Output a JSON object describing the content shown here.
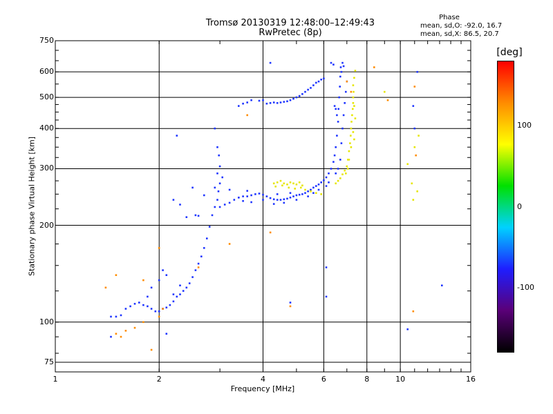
{
  "title_line1": "Tromsø 20130319 12:48:00–12:49:43",
  "title_line2": "RwPretec (8p)",
  "phase_box": {
    "title": "Phase",
    "o_line": "mean, sd,O: -92.0, 16.7",
    "x_line": "mean, sd,X:  86.5, 20.7"
  },
  "colorbar": {
    "unit": "[deg]",
    "ticks": [
      {
        "label": "100",
        "value": 100
      },
      {
        "label": "0",
        "value": 0
      },
      {
        "label": "-100",
        "value": -100
      }
    ],
    "range": [
      -180,
      180
    ],
    "colors": [
      "#000000",
      "#5a0078",
      "#1e1eff",
      "#00d2ff",
      "#00e000",
      "#ffff00",
      "#ff8c00",
      "#ff0000"
    ]
  },
  "chart_data": {
    "type": "scatter",
    "xlabel": "Frequency [MHz]",
    "ylabel": "Stationary phase Virtual Height [km]",
    "xscale": "log",
    "yscale": "log",
    "xlim": [
      1,
      16
    ],
    "ylim": [
      70,
      750
    ],
    "x_ticks": [
      {
        "label": "1",
        "value": 1
      },
      {
        "label": "2",
        "value": 2
      },
      {
        "label": "4",
        "value": 4
      },
      {
        "label": "6",
        "value": 6
      },
      {
        "label": "8",
        "value": 8
      },
      {
        "label": "10",
        "value": 10
      },
      {
        "label": "16",
        "value": 16
      }
    ],
    "y_ticks": [
      {
        "label": "750",
        "value": 750
      },
      {
        "label": "600",
        "value": 600
      },
      {
        "label": "500",
        "value": 500
      },
      {
        "label": "400",
        "value": 400
      },
      {
        "label": "300",
        "value": 300
      },
      {
        "label": "200",
        "value": 200
      },
      {
        "label": "100",
        "value": 100
      },
      {
        "label": "75",
        "value": 75
      }
    ],
    "grid": true,
    "series": [
      {
        "points": [
          [
            1.45,
            104
          ],
          [
            1.5,
            104
          ],
          [
            1.55,
            105
          ],
          [
            1.6,
            110
          ],
          [
            1.65,
            112
          ],
          [
            1.7,
            114
          ],
          [
            1.75,
            115
          ],
          [
            1.8,
            113
          ],
          [
            1.85,
            112
          ],
          [
            1.9,
            110
          ],
          [
            1.95,
            108
          ],
          [
            2.0,
            108
          ],
          [
            2.05,
            110
          ],
          [
            2.1,
            111
          ],
          [
            2.15,
            113
          ],
          [
            2.2,
            116
          ],
          [
            2.25,
            120
          ],
          [
            2.3,
            122
          ],
          [
            2.35,
            125
          ],
          [
            2.4,
            128
          ],
          [
            2.45,
            132
          ],
          [
            2.5,
            138
          ],
          [
            2.55,
            145
          ],
          [
            2.6,
            152
          ],
          [
            2.65,
            160
          ],
          [
            2.7,
            170
          ],
          [
            2.75,
            182
          ],
          [
            2.8,
            198
          ],
          [
            2.85,
            215
          ],
          [
            2.9,
            228
          ],
          [
            1.9,
            128
          ],
          [
            2.0,
            135
          ],
          [
            2.1,
            140
          ],
          [
            2.2,
            122
          ],
          [
            2.3,
            130
          ],
          [
            1.85,
            120
          ],
          [
            2.05,
            145
          ],
          [
            2.95,
            240
          ],
          [
            2.97,
            255
          ],
          [
            3.0,
            270
          ],
          [
            2.95,
            290
          ],
          [
            3.0,
            305
          ],
          [
            2.98,
            330
          ],
          [
            2.95,
            350
          ],
          [
            2.9,
            262
          ],
          [
            3.05,
            282
          ],
          [
            2.4,
            212
          ],
          [
            2.55,
            215
          ],
          [
            2.6,
            214
          ],
          [
            2.3,
            232
          ],
          [
            2.2,
            240
          ],
          [
            2.5,
            262
          ],
          [
            2.7,
            248
          ],
          [
            2.25,
            380
          ],
          [
            2.9,
            400
          ],
          [
            3.0,
            228
          ],
          [
            3.1,
            232
          ],
          [
            3.2,
            235
          ],
          [
            3.3,
            240
          ],
          [
            3.4,
            244
          ],
          [
            3.5,
            246
          ],
          [
            3.6,
            246
          ],
          [
            3.7,
            248
          ],
          [
            3.8,
            250
          ],
          [
            3.9,
            251
          ],
          [
            4.0,
            249
          ],
          [
            4.1,
            246
          ],
          [
            4.2,
            243
          ],
          [
            4.3,
            241
          ],
          [
            4.4,
            240
          ],
          [
            4.5,
            240
          ],
          [
            4.6,
            241
          ],
          [
            4.7,
            242
          ],
          [
            4.8,
            244
          ],
          [
            4.9,
            246
          ],
          [
            5.0,
            248
          ],
          [
            5.1,
            249
          ],
          [
            5.2,
            250
          ],
          [
            5.3,
            252
          ],
          [
            5.4,
            255
          ],
          [
            5.5,
            258
          ],
          [
            5.6,
            262
          ],
          [
            5.7,
            265
          ],
          [
            5.8,
            268
          ],
          [
            5.9,
            272
          ],
          [
            6.0,
            276
          ],
          [
            6.1,
            282
          ],
          [
            6.2,
            290
          ],
          [
            6.3,
            300
          ],
          [
            6.4,
            315
          ],
          [
            6.45,
            330
          ],
          [
            6.5,
            350
          ],
          [
            6.55,
            380
          ],
          [
            6.6,
            420
          ],
          [
            6.62,
            460
          ],
          [
            6.65,
            500
          ],
          [
            6.68,
            540
          ],
          [
            6.7,
            580
          ],
          [
            6.72,
            620
          ],
          [
            6.3,
            640
          ],
          [
            6.4,
            632
          ],
          [
            6.8,
            640
          ],
          [
            6.85,
            625
          ],
          [
            6.75,
            600
          ],
          [
            3.5,
            238
          ],
          [
            3.7,
            236
          ],
          [
            4.0,
            240
          ],
          [
            4.3,
            233
          ],
          [
            4.6,
            235
          ],
          [
            5.0,
            240
          ],
          [
            5.4,
            246
          ],
          [
            5.8,
            258
          ],
          [
            6.2,
            272
          ],
          [
            6.5,
            290
          ],
          [
            3.2,
            258
          ],
          [
            3.4,
            244
          ],
          [
            3.6,
            256
          ],
          [
            4.4,
            250
          ],
          [
            4.8,
            252
          ],
          [
            5.6,
            252
          ],
          [
            6.1,
            265
          ],
          [
            6.6,
            300
          ],
          [
            6.7,
            320
          ],
          [
            6.75,
            360
          ],
          [
            6.8,
            400
          ],
          [
            6.85,
            440
          ],
          [
            6.9,
            480
          ],
          [
            6.95,
            520
          ],
          [
            7.0,
            560
          ],
          [
            6.55,
            440
          ],
          [
            6.5,
            460
          ],
          [
            6.45,
            470
          ],
          [
            3.4,
            470
          ],
          [
            3.5,
            478
          ],
          [
            3.6,
            482
          ],
          [
            3.7,
            490
          ],
          [
            4.1,
            478
          ],
          [
            4.2,
            480
          ],
          [
            4.3,
            482
          ],
          [
            4.4,
            480
          ],
          [
            4.5,
            482
          ],
          [
            4.6,
            484
          ],
          [
            4.7,
            486
          ],
          [
            4.8,
            490
          ],
          [
            4.9,
            495
          ],
          [
            5.0,
            500
          ],
          [
            5.1,
            505
          ],
          [
            5.2,
            512
          ],
          [
            5.3,
            520
          ],
          [
            5.4,
            528
          ],
          [
            5.5,
            535
          ],
          [
            5.6,
            545
          ],
          [
            5.8,
            560
          ],
          [
            6.0,
            572
          ],
          [
            4.2,
            640
          ],
          [
            3.9,
            488
          ],
          [
            4.0,
            490
          ],
          [
            5.7,
            555
          ],
          [
            5.9,
            568
          ],
          [
            1.45,
            90
          ],
          [
            2.1,
            92
          ],
          [
            6.1,
            148
          ],
          [
            6.1,
            120
          ],
          [
            4.8,
            115
          ],
          [
            10.5,
            95
          ],
          [
            13.2,
            130
          ],
          [
            11.0,
            400
          ],
          [
            10.9,
            470
          ],
          [
            11.2,
            600
          ]
        ],
        "color": "#1e35ff"
      },
      {
        "points": [
          [
            4.3,
            270
          ],
          [
            4.4,
            272
          ],
          [
            4.5,
            275
          ],
          [
            4.6,
            270
          ],
          [
            4.7,
            268
          ],
          [
            4.8,
            272
          ],
          [
            4.9,
            270
          ],
          [
            5.0,
            268
          ],
          [
            5.1,
            272
          ],
          [
            5.2,
            266
          ],
          [
            4.35,
            264
          ],
          [
            4.55,
            266
          ],
          [
            4.75,
            262
          ],
          [
            4.95,
            260
          ],
          [
            5.15,
            262
          ],
          [
            5.3,
            258
          ],
          [
            5.5,
            255
          ],
          [
            5.7,
            252
          ],
          [
            5.9,
            250
          ],
          [
            6.5,
            270
          ],
          [
            6.6,
            275
          ],
          [
            6.7,
            280
          ],
          [
            6.8,
            288
          ],
          [
            6.9,
            296
          ],
          [
            7.0,
            305
          ],
          [
            7.05,
            320
          ],
          [
            7.1,
            340
          ],
          [
            7.15,
            360
          ],
          [
            7.18,
            380
          ],
          [
            7.2,
            400
          ],
          [
            7.22,
            420
          ],
          [
            7.25,
            440
          ],
          [
            7.28,
            460
          ],
          [
            7.3,
            480
          ],
          [
            7.3,
            500
          ],
          [
            7.32,
            520
          ],
          [
            7.3,
            545
          ],
          [
            7.35,
            575
          ],
          [
            7.4,
            605
          ],
          [
            7.2,
            350
          ],
          [
            7.1,
            320
          ],
          [
            7.05,
            300
          ],
          [
            6.95,
            290
          ],
          [
            7.3,
            390
          ],
          [
            7.35,
            370
          ],
          [
            7.4,
            430
          ],
          [
            7.35,
            470
          ],
          [
            10.5,
            310
          ],
          [
            10.8,
            270
          ],
          [
            10.9,
            240
          ],
          [
            11.2,
            255
          ],
          [
            11.3,
            380
          ],
          [
            11.0,
            350
          ],
          [
            9.0,
            520
          ]
        ],
        "color": "#e6e600"
      },
      {
        "points": [
          [
            1.5,
            92
          ],
          [
            1.55,
            90
          ],
          [
            1.6,
            94
          ],
          [
            1.7,
            96
          ],
          [
            1.8,
            100
          ],
          [
            1.9,
            82
          ],
          [
            2.0,
            170
          ],
          [
            2.05,
            110
          ],
          [
            2.0,
            104
          ],
          [
            3.6,
            440
          ],
          [
            4.2,
            190
          ],
          [
            4.8,
            112
          ],
          [
            7.0,
            560
          ],
          [
            7.2,
            520
          ],
          [
            8.4,
            620
          ],
          [
            9.2,
            490
          ],
          [
            10.9,
            108
          ],
          [
            11.0,
            540
          ],
          [
            11.1,
            330
          ],
          [
            2.6,
            148
          ],
          [
            3.2,
            175
          ],
          [
            1.4,
            128
          ],
          [
            1.5,
            140
          ],
          [
            1.8,
            135
          ]
        ],
        "color": "#ff8c00"
      }
    ]
  }
}
